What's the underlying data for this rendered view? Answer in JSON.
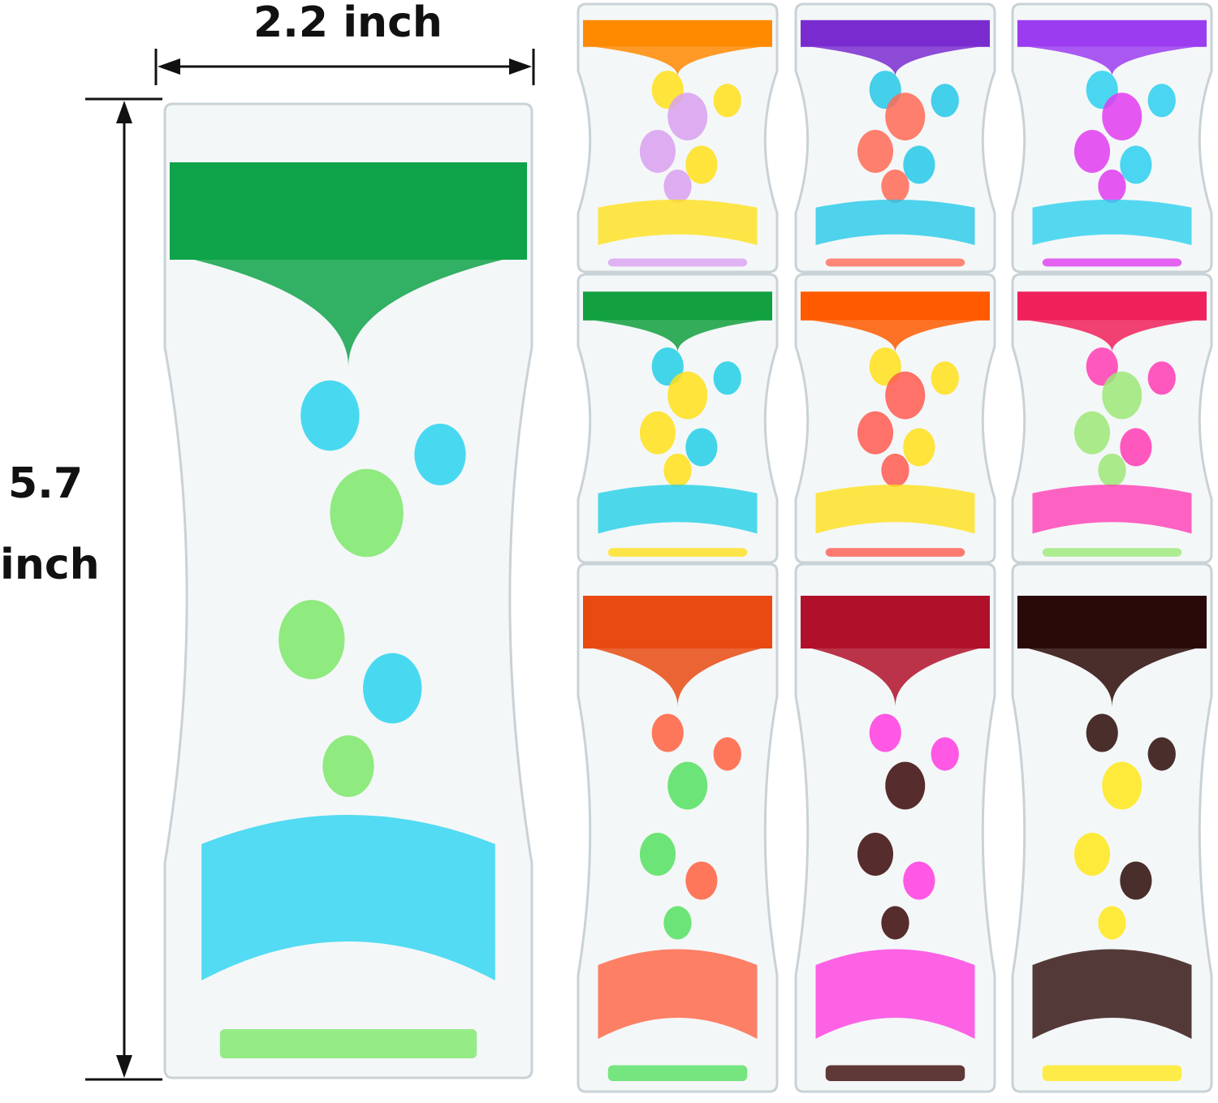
{
  "dimensions": {
    "width_label": "2.2 inch",
    "height_label_value": "5.7",
    "height_label_unit": "inch"
  },
  "main_timer": {
    "top_color": "#0fa34a",
    "drop_color": "#29d3f0",
    "accent_color": "#7de86a"
  },
  "variants": [
    {
      "top_color": "#ff8a00",
      "drop_color": "#ffe01a",
      "accent_color": "#d9a0f0"
    },
    {
      "top_color": "#7a2bd0",
      "drop_color": "#25c8e8",
      "accent_color": "#ff6a55"
    },
    {
      "top_color": "#9b3cf0",
      "drop_color": "#2cd0ee",
      "accent_color": "#e03cf0"
    },
    {
      "top_color": "#12a040",
      "drop_color": "#22cfe6",
      "accent_color": "#ffe01a"
    },
    {
      "top_color": "#ff5a00",
      "drop_color": "#ffe01a",
      "accent_color": "#ff5a50"
    },
    {
      "top_color": "#f0205a",
      "drop_color": "#ff3cb4",
      "accent_color": "#9ce878"
    },
    {
      "top_color": "#e84a12",
      "drop_color": "#ff6040",
      "accent_color": "#55e060"
    },
    {
      "top_color": "#b0102a",
      "drop_color": "#ff3ce0",
      "accent_color": "#3a0808"
    },
    {
      "top_color": "#2a0a08",
      "drop_color": "#2a0a08",
      "accent_color": "#ffe81a"
    }
  ]
}
